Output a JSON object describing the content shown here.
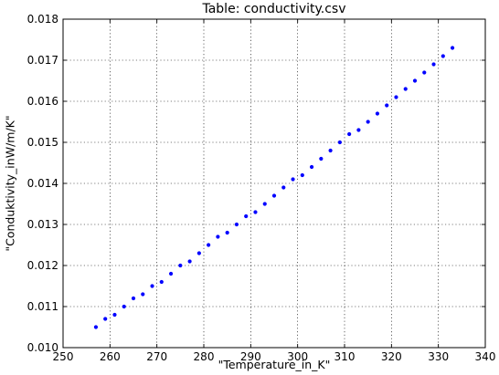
{
  "chart_data": {
    "type": "scatter",
    "title": "Table: conductivity.csv",
    "xlabel": "\"Temperature_in_K\"",
    "ylabel": "\"Conduktivity_inW/m/K\"",
    "xlim": [
      250,
      340
    ],
    "ylim": [
      0.01,
      0.018
    ],
    "grid": true,
    "marker_color": "#0000ff",
    "x_ticks": [
      "250",
      "260",
      "270",
      "280",
      "290",
      "300",
      "310",
      "320",
      "330",
      "340"
    ],
    "y_ticks": [
      "0.010",
      "0.011",
      "0.012",
      "0.013",
      "0.014",
      "0.015",
      "0.016",
      "0.017",
      "0.018"
    ],
    "series": [
      {
        "x": [
          257,
          259,
          261,
          263,
          265,
          267,
          269,
          271,
          273,
          275,
          277,
          279,
          281,
          283,
          285,
          287,
          289,
          291,
          293,
          295,
          297,
          299,
          301,
          303,
          305,
          307,
          309,
          311,
          313,
          315,
          317,
          319,
          321,
          323,
          325,
          327,
          329,
          331,
          333
        ],
        "y": [
          0.0105,
          0.0107,
          0.0108,
          0.011,
          0.0112,
          0.0113,
          0.0115,
          0.0116,
          0.0118,
          0.012,
          0.0121,
          0.0123,
          0.0125,
          0.0127,
          0.0128,
          0.013,
          0.0132,
          0.0133,
          0.0135,
          0.0137,
          0.0139,
          0.0141,
          0.0142,
          0.0144,
          0.0146,
          0.0148,
          0.015,
          0.0152,
          0.0153,
          0.0155,
          0.0157,
          0.0159,
          0.0161,
          0.0163,
          0.0165,
          0.0167,
          0.0169,
          0.0171,
          0.0173
        ]
      }
    ]
  }
}
